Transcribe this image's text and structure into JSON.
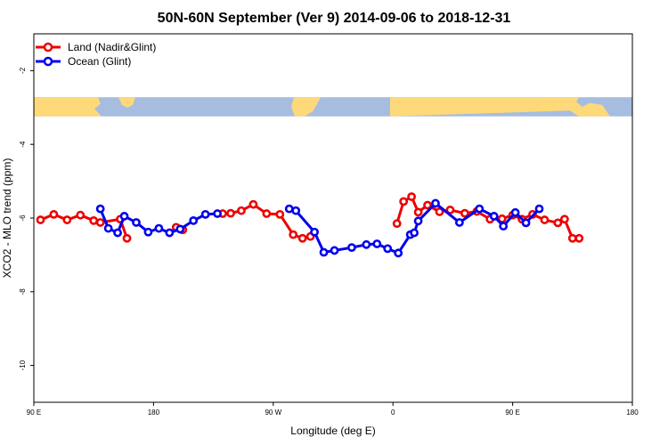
{
  "chart_data": {
    "type": "line",
    "title": "50N-60N September (Ver 9)   2014-09-06 to 2018-12-31",
    "xlabel": "Longitude (deg E)",
    "ylabel": "XCO2 - MLO trend (ppm)",
    "xlim": [
      90,
      540
    ],
    "ylim": [
      -11,
      -1
    ],
    "x_ticks": [
      {
        "value": 90,
        "label": "90 E"
      },
      {
        "value": 180,
        "label": "180"
      },
      {
        "value": 270,
        "label": "90 W"
      },
      {
        "value": 360,
        "label": "0"
      },
      {
        "value": 450,
        "label": "90 E"
      },
      {
        "value": 540,
        "label": "180"
      }
    ],
    "y_ticks": [
      {
        "value": -2,
        "label": "-2"
      },
      {
        "value": -4,
        "label": "-4"
      },
      {
        "value": -6,
        "label": "-6"
      },
      {
        "value": -8,
        "label": "-8"
      },
      {
        "value": -10,
        "label": "-10"
      }
    ],
    "grid": false,
    "legend_position": "top-left",
    "map_band": {
      "y_top": -2.72,
      "y_bottom": -3.24,
      "ocean_color": "#a6bde0",
      "land_color": "#fed97a"
    },
    "series": [
      {
        "name": "Land (Nadir&Glint)",
        "color": "#ee0000",
        "segments": [
          {
            "x": [
              95,
              105,
              115,
              125,
              135,
              140,
              155,
              160
            ],
            "y": [
              -6.05,
              -5.9,
              -6.05,
              -5.92,
              -6.07,
              -6.12,
              -6.03,
              -6.55
            ]
          },
          {
            "x": [
              197,
              202
            ],
            "y": [
              -6.25,
              -6.32
            ]
          },
          {
            "x": [
              232,
              238,
              246,
              255,
              265,
              275,
              285,
              292,
              298
            ],
            "y": [
              -5.88,
              -5.87,
              -5.8,
              -5.63,
              -5.88,
              -5.9,
              -6.45,
              -6.55,
              -6.5
            ]
          },
          {
            "x": [
              363,
              368,
              374,
              379,
              386,
              395,
              403,
              414,
              423,
              433,
              442,
              450,
              457,
              465,
              474,
              484,
              489,
              495,
              500
            ],
            "y": [
              -6.15,
              -5.55,
              -5.42,
              -5.84,
              -5.65,
              -5.83,
              -5.78,
              -5.87,
              -5.82,
              -6.03,
              -6.02,
              -5.92,
              -6.03,
              -5.9,
              -6.05,
              -6.13,
              -6.03,
              -6.55,
              -6.55
            ]
          }
        ]
      },
      {
        "name": "Ocean (Glint)",
        "color": "#0000ee",
        "segments": [
          {
            "x": [
              140,
              146,
              153,
              158,
              167,
              176,
              184,
              192,
              200,
              210,
              219,
              228
            ],
            "y": [
              -5.75,
              -6.28,
              -6.4,
              -5.95,
              -6.12,
              -6.38,
              -6.28,
              -6.4,
              -6.3,
              -6.07,
              -5.9,
              -5.88
            ]
          },
          {
            "x": [
              282,
              287,
              301,
              308,
              316,
              329,
              340,
              348,
              356,
              364,
              373,
              376,
              379,
              392,
              410,
              425,
              436,
              443,
              452,
              460,
              470
            ],
            "y": [
              -5.75,
              -5.8,
              -6.38,
              -6.93,
              -6.88,
              -6.8,
              -6.72,
              -6.7,
              -6.83,
              -6.95,
              -6.45,
              -6.4,
              -6.08,
              -5.6,
              -6.12,
              -5.75,
              -5.95,
              -6.22,
              -5.85,
              -6.13,
              -5.75
            ]
          }
        ]
      }
    ]
  }
}
